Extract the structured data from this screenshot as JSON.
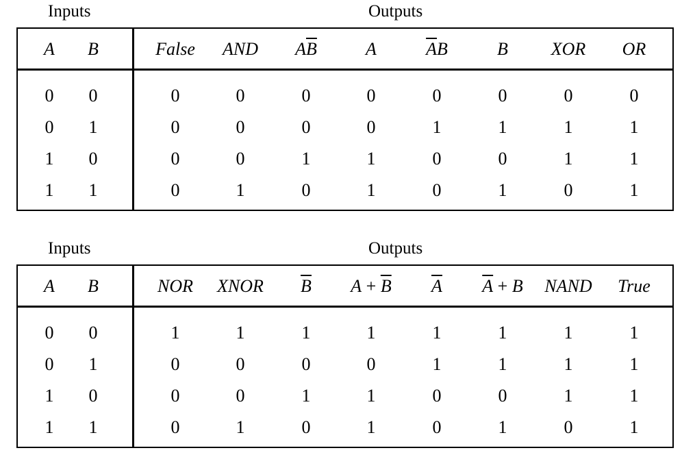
{
  "tables": [
    {
      "inputs_label": "Inputs",
      "outputs_label": "Outputs",
      "headers": [
        {
          "parts": [
            {
              "t": "A"
            }
          ]
        },
        {
          "parts": [
            {
              "t": "B"
            }
          ]
        },
        {
          "parts": [
            {
              "t": "False"
            }
          ]
        },
        {
          "parts": [
            {
              "t": "AND"
            }
          ]
        },
        {
          "parts": [
            {
              "t": "A"
            },
            {
              "t": "B",
              "bar": true
            }
          ]
        },
        {
          "parts": [
            {
              "t": "A"
            }
          ]
        },
        {
          "parts": [
            {
              "t": "A",
              "bar": true
            },
            {
              "t": "B"
            }
          ]
        },
        {
          "parts": [
            {
              "t": "B"
            }
          ]
        },
        {
          "parts": [
            {
              "t": "XOR"
            }
          ]
        },
        {
          "parts": [
            {
              "t": "OR"
            }
          ]
        }
      ],
      "rows": [
        [
          "0",
          "0",
          "0",
          "0",
          "0",
          "0",
          "0",
          "0",
          "0",
          "0"
        ],
        [
          "0",
          "1",
          "0",
          "0",
          "0",
          "0",
          "1",
          "1",
          "1",
          "1"
        ],
        [
          "1",
          "0",
          "0",
          "0",
          "1",
          "1",
          "0",
          "0",
          "1",
          "1"
        ],
        [
          "1",
          "1",
          "0",
          "1",
          "0",
          "1",
          "0",
          "1",
          "0",
          "1"
        ]
      ]
    },
    {
      "inputs_label": "Inputs",
      "outputs_label": "Outputs",
      "headers": [
        {
          "parts": [
            {
              "t": "A"
            }
          ]
        },
        {
          "parts": [
            {
              "t": "B"
            }
          ]
        },
        {
          "parts": [
            {
              "t": "NOR"
            }
          ]
        },
        {
          "parts": [
            {
              "t": "XNOR"
            }
          ]
        },
        {
          "parts": [
            {
              "t": "B",
              "bar": true
            }
          ]
        },
        {
          "parts": [
            {
              "t": "A"
            },
            {
              "t": " + ",
              "op": true
            },
            {
              "t": "B",
              "bar": true
            }
          ]
        },
        {
          "parts": [
            {
              "t": "A",
              "bar": true
            }
          ]
        },
        {
          "parts": [
            {
              "t": "A",
              "bar": true
            },
            {
              "t": " + ",
              "op": true
            },
            {
              "t": "B"
            }
          ]
        },
        {
          "parts": [
            {
              "t": "NAND"
            }
          ]
        },
        {
          "parts": [
            {
              "t": "True"
            }
          ]
        }
      ],
      "rows": [
        [
          "0",
          "0",
          "1",
          "1",
          "1",
          "1",
          "1",
          "1",
          "1",
          "1"
        ],
        [
          "0",
          "1",
          "0",
          "0",
          "0",
          "0",
          "1",
          "1",
          "1",
          "1"
        ],
        [
          "1",
          "0",
          "0",
          "0",
          "1",
          "1",
          "0",
          "0",
          "1",
          "1"
        ],
        [
          "1",
          "1",
          "0",
          "1",
          "0",
          "1",
          "0",
          "1",
          "0",
          "1"
        ]
      ]
    }
  ]
}
